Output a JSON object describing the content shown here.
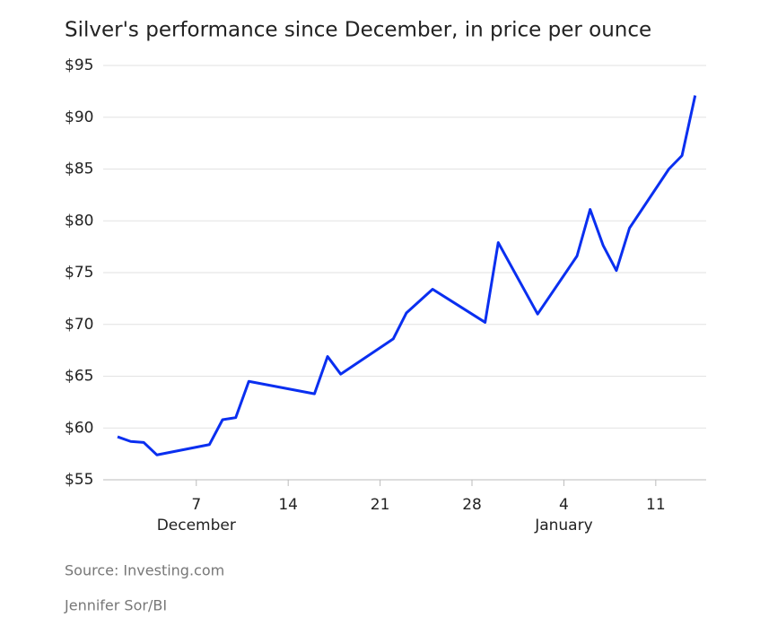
{
  "chart_data": {
    "type": "line",
    "title": "Silver's performance since December, in price per ounce",
    "x": [
      "12-01",
      "12-02",
      "12-03",
      "12-04",
      "12-08",
      "12-09",
      "12-10",
      "12-11",
      "12-16",
      "12-17",
      "12-18",
      "12-22",
      "12-23",
      "12-25",
      "12-29",
      "12-30",
      "01-02",
      "01-05",
      "01-06",
      "01-07",
      "01-08",
      "01-09",
      "01-12",
      "01-13",
      "01-14"
    ],
    "values": [
      59.15,
      58.7,
      58.6,
      57.4,
      58.4,
      60.8,
      61.0,
      64.5,
      63.3,
      66.9,
      65.2,
      68.6,
      71.1,
      73.4,
      70.2,
      77.9,
      71.0,
      76.6,
      81.1,
      77.6,
      75.2,
      79.3,
      85.0,
      86.3,
      92.1
    ],
    "color": "#0a2ff0",
    "ylim": [
      55,
      95
    ],
    "yticks": [
      {
        "value": 55,
        "label": "$55"
      },
      {
        "value": 60,
        "label": "$60"
      },
      {
        "value": 65,
        "label": "$65"
      },
      {
        "value": 70,
        "label": "$70"
      },
      {
        "value": 75,
        "label": "$75"
      },
      {
        "value": 80,
        "label": "$80"
      },
      {
        "value": 85,
        "label": "$85"
      },
      {
        "value": 90,
        "label": "$90"
      },
      {
        "value": 95,
        "label": "$95"
      }
    ],
    "xticks": [
      {
        "value": "12-07",
        "label": "7"
      },
      {
        "value": "12-14",
        "label": "14"
      },
      {
        "value": "12-21",
        "label": "21"
      },
      {
        "value": "12-28",
        "label": "28"
      },
      {
        "value": "01-04",
        "label": "4"
      },
      {
        "value": "01-11",
        "label": "11"
      }
    ],
    "x_groups": [
      {
        "label": "December",
        "at": "12-07"
      },
      {
        "label": "January",
        "at": "01-04"
      }
    ],
    "grid": true,
    "source": "Source: Investing.com",
    "credit": "Jennifer Sor/BI"
  }
}
